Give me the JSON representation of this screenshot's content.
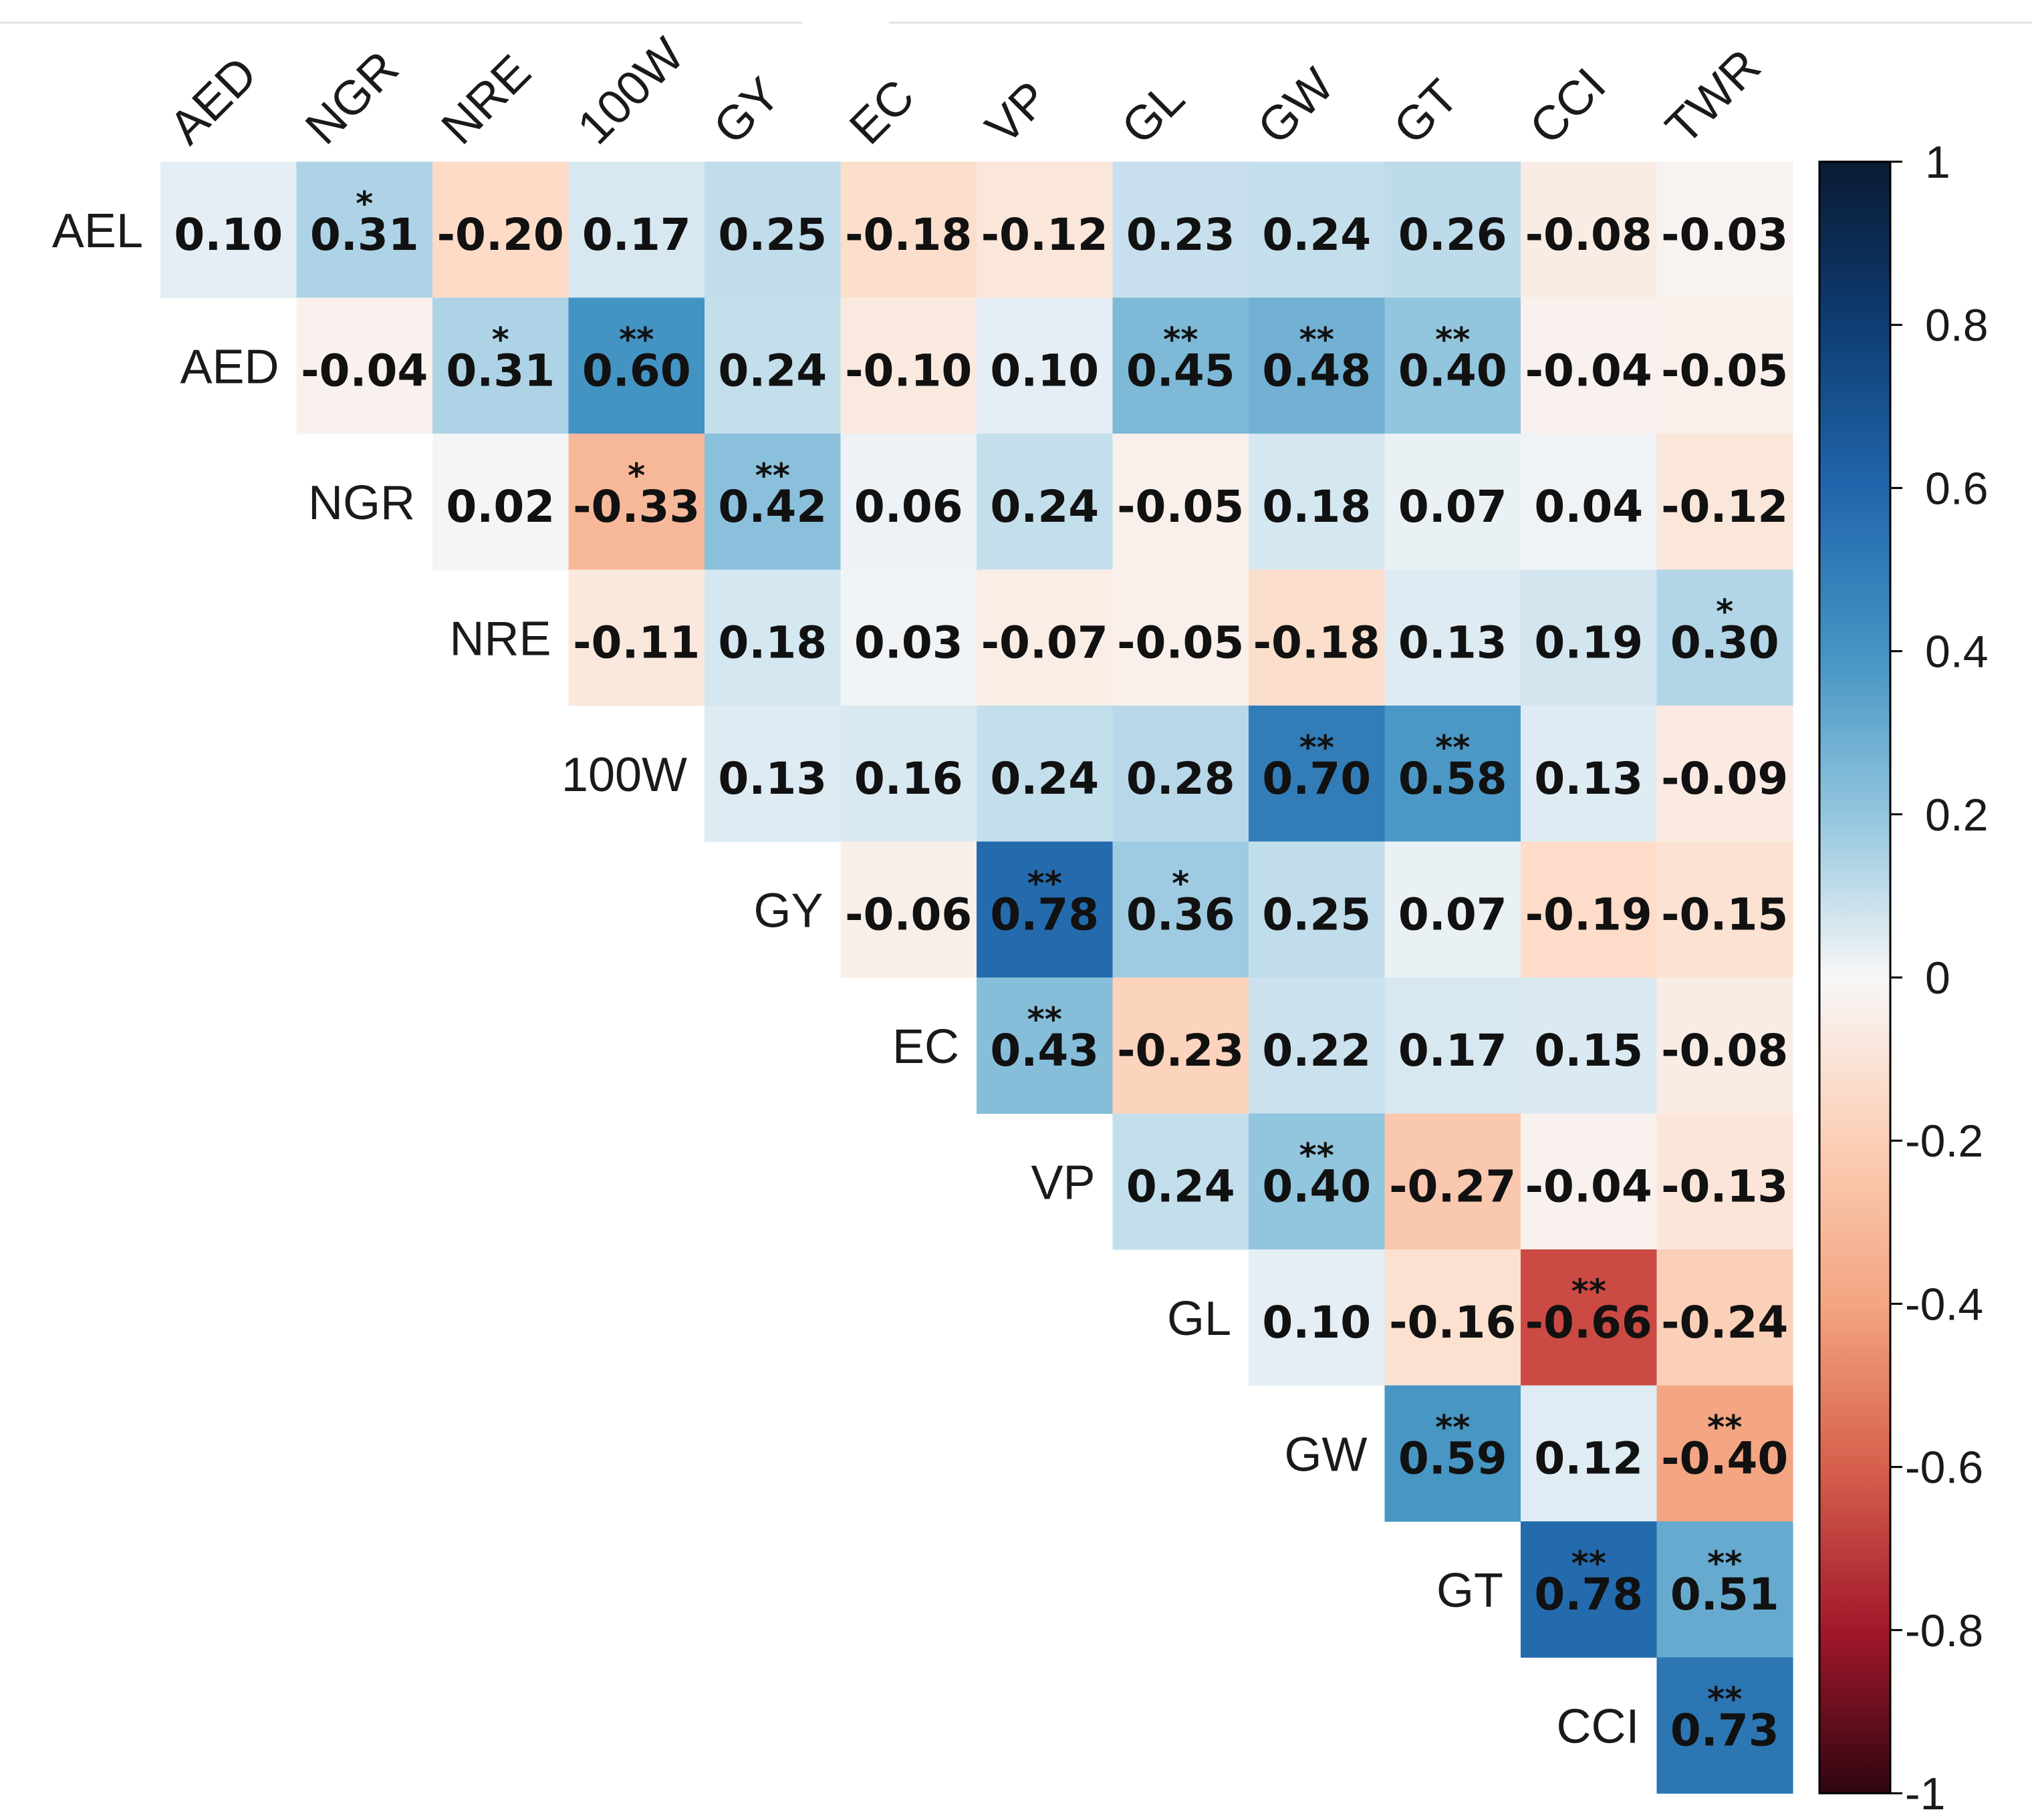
{
  "chart_data": {
    "type": "heatmap",
    "title": "",
    "row_labels": [
      "AEL",
      "AED",
      "NGR",
      "NRE",
      "100W",
      "GY",
      "EC",
      "VP",
      "GL",
      "GW",
      "GT",
      "CCI"
    ],
    "col_labels": [
      "AED",
      "NGR",
      "NRE",
      "100W",
      "GY",
      "EC",
      "VP",
      "GL",
      "GW",
      "GT",
      "CCI",
      "TWR"
    ],
    "rows": [
      {
        "label": "AEL",
        "start": 0,
        "values": [
          0.1,
          0.31,
          -0.2,
          0.17,
          0.25,
          -0.18,
          -0.12,
          0.23,
          0.24,
          0.26,
          -0.08,
          -0.03
        ],
        "sig": [
          "",
          "*",
          "",
          "",
          "",
          "",
          "",
          "",
          "",
          "",
          "",
          ""
        ]
      },
      {
        "label": "AED",
        "start": 1,
        "values": [
          -0.04,
          0.31,
          0.6,
          0.24,
          -0.1,
          0.1,
          0.45,
          0.48,
          0.4,
          -0.04,
          -0.05
        ],
        "sig": [
          "",
          "*",
          "**",
          "",
          "",
          "",
          "**",
          "**",
          "**",
          "",
          ""
        ]
      },
      {
        "label": "NGR",
        "start": 2,
        "values": [
          0.02,
          -0.33,
          0.42,
          0.06,
          0.24,
          -0.05,
          0.18,
          0.07,
          0.04,
          -0.12
        ],
        "sig": [
          "",
          "*",
          "**",
          "",
          "",
          "",
          "",
          "",
          "",
          ""
        ]
      },
      {
        "label": "NRE",
        "start": 3,
        "values": [
          -0.11,
          0.18,
          0.03,
          -0.07,
          -0.05,
          -0.18,
          0.13,
          0.19,
          0.3
        ],
        "sig": [
          "",
          "",
          "",
          "",
          "",
          "",
          "",
          "",
          "*"
        ]
      },
      {
        "label": "100W",
        "start": 4,
        "values": [
          0.13,
          0.16,
          0.24,
          0.28,
          0.7,
          0.58,
          0.13,
          -0.09
        ],
        "sig": [
          "",
          "",
          "",
          "",
          "**",
          "**",
          "",
          ""
        ]
      },
      {
        "label": "GY",
        "start": 5,
        "values": [
          -0.06,
          0.78,
          0.36,
          0.25,
          0.07,
          -0.19,
          -0.15
        ],
        "sig": [
          "",
          "**",
          "*",
          "",
          "",
          "",
          ""
        ]
      },
      {
        "label": "EC",
        "start": 6,
        "values": [
          0.43,
          -0.23,
          0.22,
          0.17,
          0.15,
          -0.08
        ],
        "sig": [
          "**",
          "",
          "",
          "",
          "",
          ""
        ]
      },
      {
        "label": "VP",
        "start": 7,
        "values": [
          0.24,
          0.4,
          -0.27,
          -0.04,
          -0.13
        ],
        "sig": [
          "",
          "**",
          "",
          "",
          ""
        ]
      },
      {
        "label": "GL",
        "start": 8,
        "values": [
          0.1,
          -0.16,
          -0.66,
          -0.24
        ],
        "sig": [
          "",
          "",
          "**",
          ""
        ]
      },
      {
        "label": "GW",
        "start": 9,
        "values": [
          0.59,
          0.12,
          -0.4
        ],
        "sig": [
          "**",
          "",
          "**"
        ]
      },
      {
        "label": "GT",
        "start": 10,
        "values": [
          0.78,
          0.51
        ],
        "sig": [
          "**",
          "**"
        ]
      },
      {
        "label": "CCI",
        "start": 11,
        "values": [
          0.73
        ],
        "sig": [
          "**"
        ]
      }
    ],
    "colorbar": {
      "ticks": [
        "1",
        "0.8",
        "0.6",
        "0.4",
        "0.2",
        "0",
        "-0.2",
        "-0.4",
        "-0.6",
        "-0.8",
        "-1"
      ],
      "range": [
        -1,
        1
      ],
      "colors": {
        "neg_end": "#3b0810",
        "neg_mid": "#d6604d",
        "zero": "#f7f7f7",
        "pos_mid": "#4393c3",
        "pos_end": "#0a1f44"
      }
    }
  }
}
